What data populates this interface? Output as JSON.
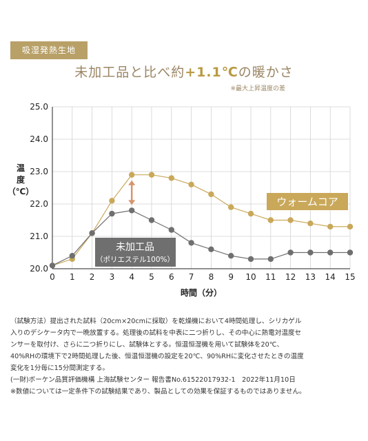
{
  "badge": "吸湿発熱生地",
  "headline": {
    "prefix": "未加工品と比べ約",
    "highlight": "+1.1℃",
    "suffix": "の暖かさ"
  },
  "note": "※最大上昇温度の差",
  "colors": {
    "gold": "#c9a85a",
    "gray": "#6f6f6f",
    "badge_bg": "#b8a067",
    "arrow": "#d7946a"
  },
  "chart_data": {
    "type": "line",
    "x": [
      0,
      1,
      2,
      3,
      4,
      5,
      6,
      7,
      8,
      9,
      10,
      11,
      12,
      13,
      14,
      15
    ],
    "xticks": [
      "0",
      "1",
      "2",
      "3",
      "4",
      "5",
      "6",
      "7",
      "8",
      "9",
      "10",
      "11",
      "12",
      "13",
      "14",
      "15"
    ],
    "yticks": [
      "20.0",
      "21.0",
      "22.0",
      "23.0",
      "24.0",
      "25.0"
    ],
    "xlabel": "時間（分）",
    "ylabel": "温度（℃）",
    "ylim": [
      20.0,
      25.0
    ],
    "xlim": [
      0,
      15
    ],
    "grid": true,
    "series": [
      {
        "name": "ウォームコア",
        "color": "#c9a85a",
        "values": [
          20.1,
          20.3,
          21.1,
          22.1,
          22.9,
          22.9,
          22.8,
          22.6,
          22.3,
          21.9,
          21.7,
          21.5,
          21.5,
          21.4,
          21.3,
          21.3
        ]
      },
      {
        "name": "未加工品",
        "sublabel": "（ポリエステル100%）",
        "color": "#6f6f6f",
        "values": [
          20.1,
          20.4,
          21.1,
          21.7,
          21.8,
          21.5,
          21.2,
          20.8,
          20.6,
          20.4,
          20.3,
          20.3,
          20.5,
          20.5,
          20.5,
          20.5
        ]
      }
    ]
  },
  "footer": {
    "lines": [
      "（試験方法）提出された試料（20cm×20cmに採取）を乾燥機において4時間処理し、シリカゲル",
      "入りのデシケータ内で一晩放置する。処理後の試料を中表に二つ折りし、その中心に熱電対温度セ",
      "ンサーを取付け、さらに二つ折りにし、試験体とする。恒温恒湿機を用いて試験体を20℃、",
      "40%RHの環境下で2時間処理した後、恒温恒湿機の設定を20℃、90%RHに変化させたときの温度",
      "変化を1分毎に15分間測定する。",
      "(一財)ボーケン品質評価機構 上海試験センター 報告書No.61522017932-1　2022年11月10日",
      "※数値については一定条件下の試験結果であり、製品としての効果を保証するものではありません。"
    ]
  }
}
